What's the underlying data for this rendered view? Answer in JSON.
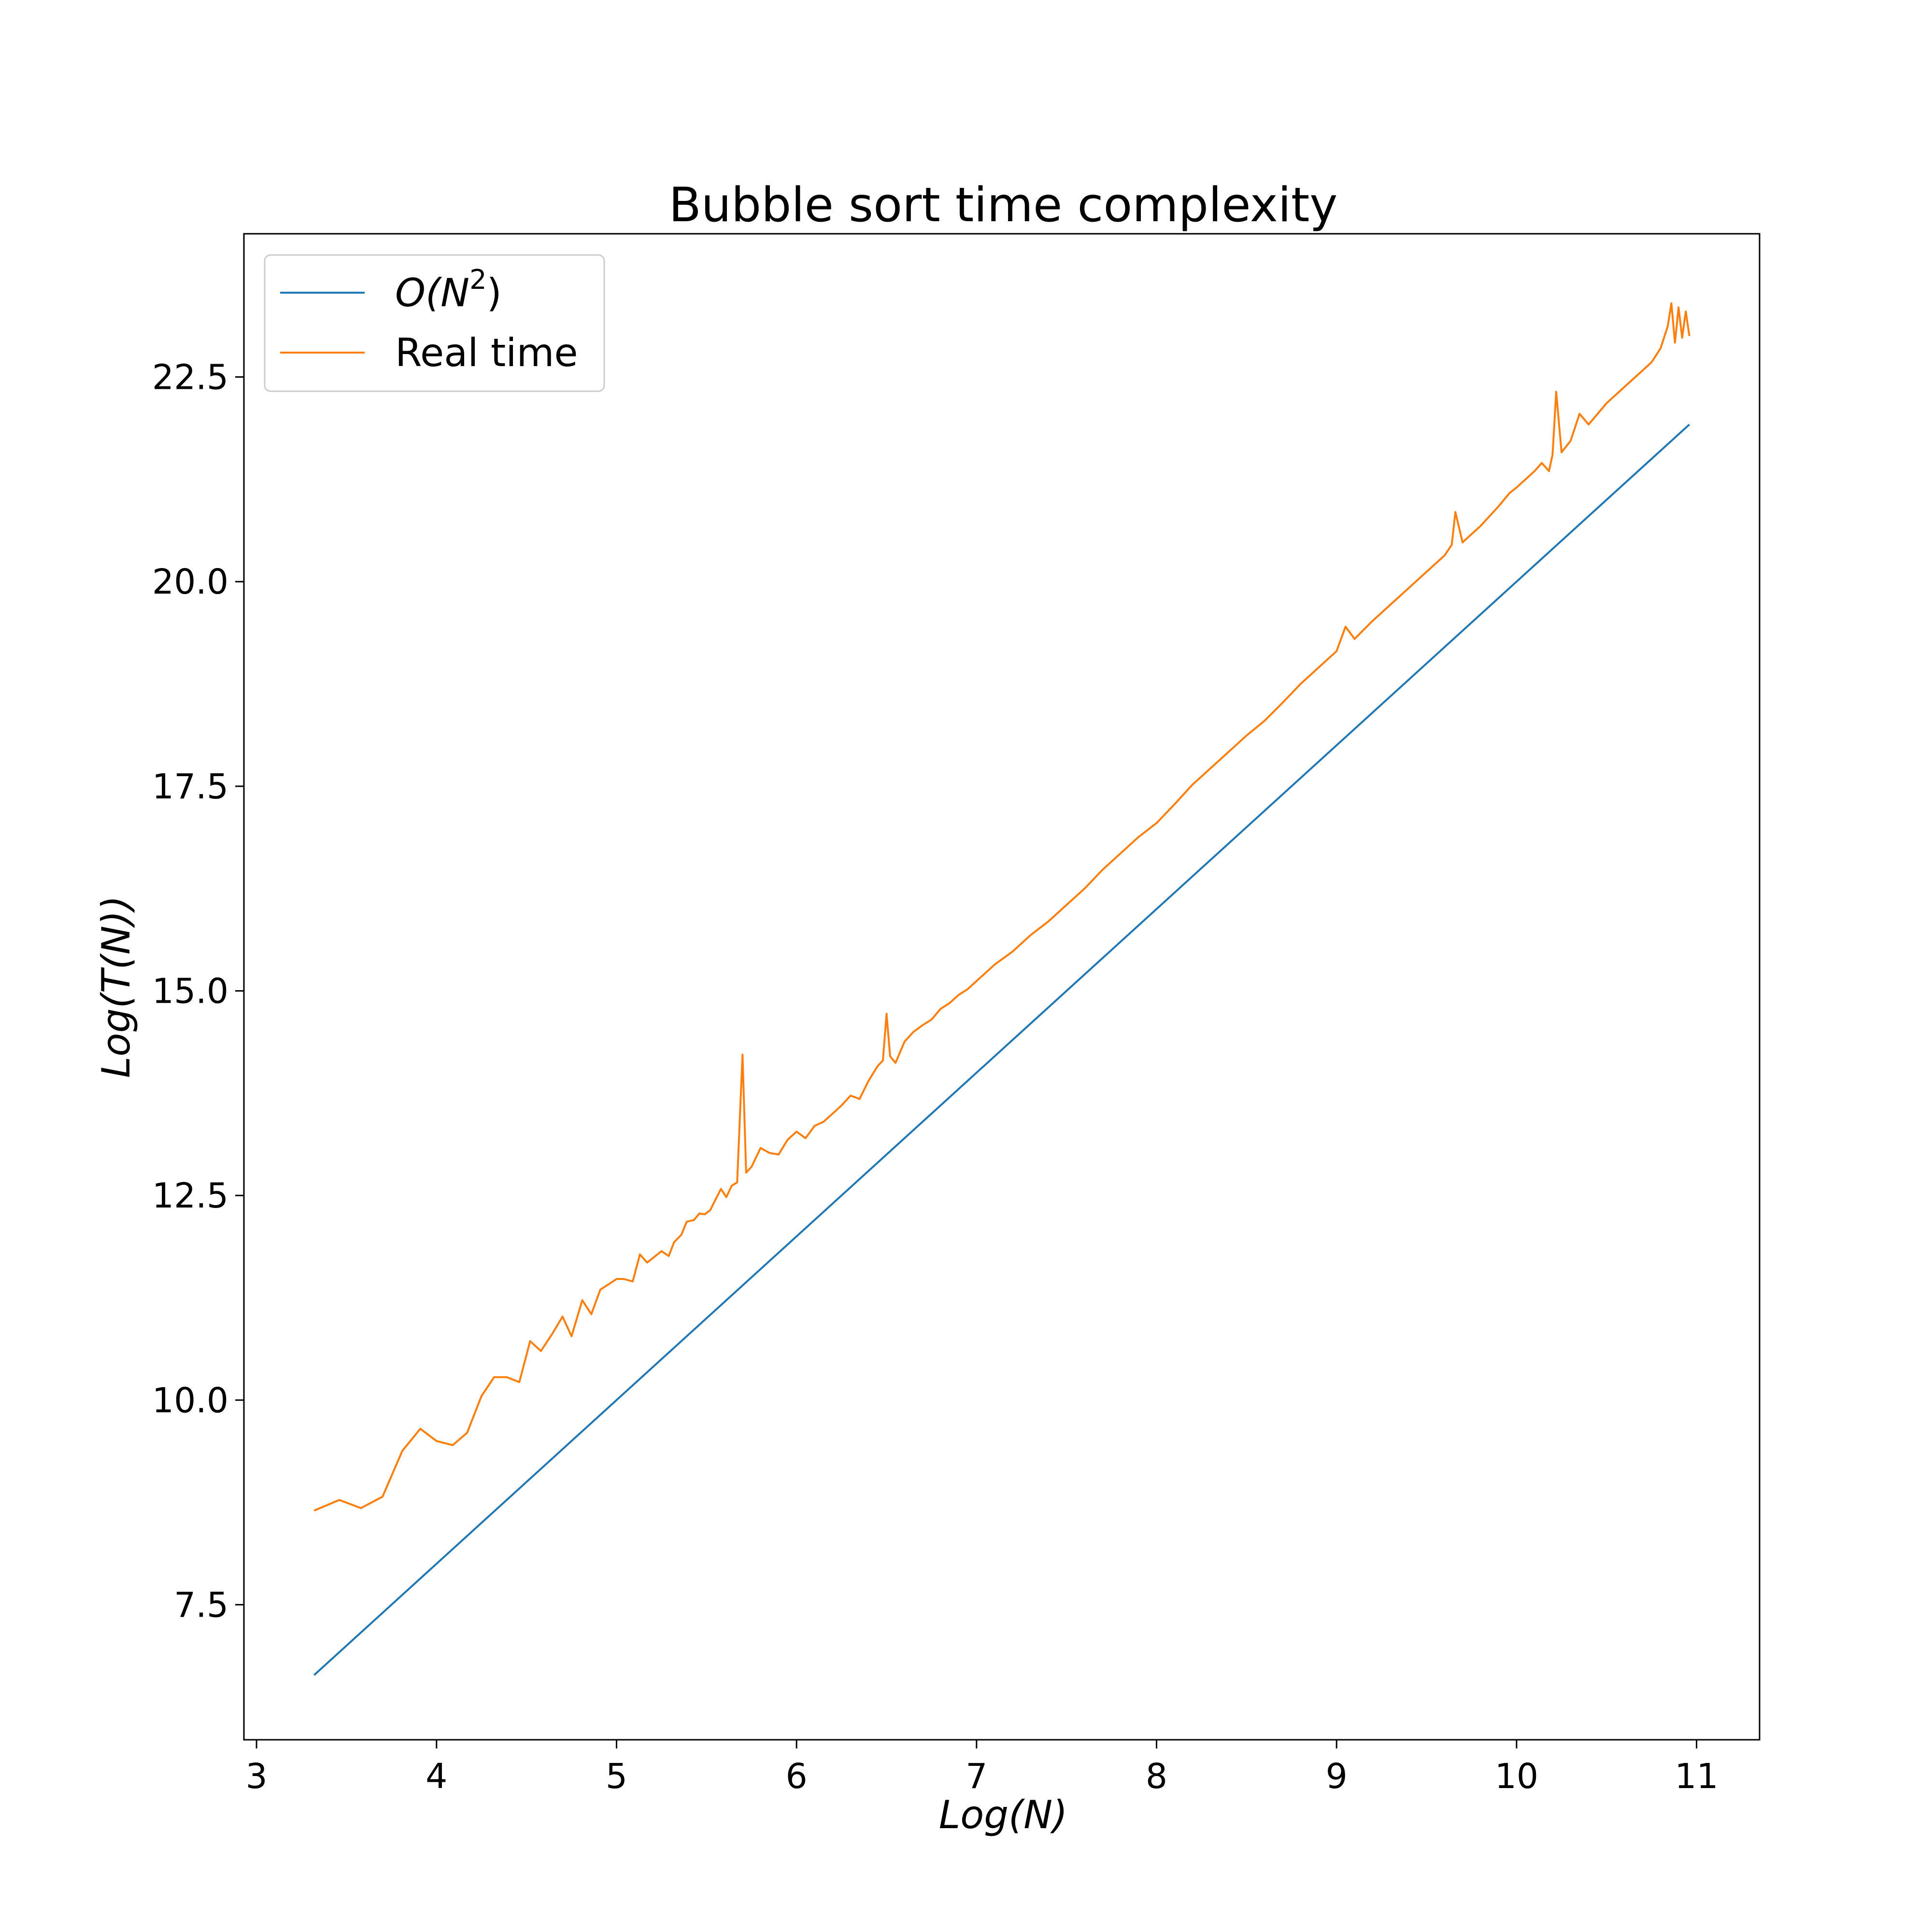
{
  "chart_data": {
    "type": "line",
    "title": "Bubble sort time complexity",
    "xlabel": "Log(N)",
    "ylabel": "Log(T(N))",
    "xlim": [
      2.93,
      11.35
    ],
    "ylim": [
      5.85,
      24.25
    ],
    "x_ticks": [
      3,
      4,
      5,
      6,
      7,
      8,
      9,
      10,
      11
    ],
    "x_tick_labels": [
      "3",
      "4",
      "5",
      "6",
      "7",
      "8",
      "9",
      "10",
      "11"
    ],
    "y_ticks": [
      7.5,
      10.0,
      12.5,
      15.0,
      17.5,
      20.0,
      22.5
    ],
    "y_tick_labels": [
      "7.5",
      "10.0",
      "12.5",
      "15.0",
      "17.5",
      "20.0",
      "22.5"
    ],
    "grid": false,
    "legend_position": "top-left",
    "series": [
      {
        "name": "O(N²)",
        "legend_label": {
          "main": "O(N",
          "sup": "2",
          "close": ")"
        },
        "color": "#1f77b4",
        "x": [
          3.32,
          10.96
        ],
        "y": [
          6.64,
          21.92
        ]
      },
      {
        "name": "Real time",
        "color": "#ff7f0e",
        "x": [
          3.32,
          3.46,
          3.58,
          3.7,
          3.81,
          3.91,
          4.0,
          4.09,
          4.17,
          4.25,
          4.32,
          4.39,
          4.46,
          4.52,
          4.58,
          4.64,
          4.7,
          4.75,
          4.81,
          4.86,
          4.91,
          4.96,
          5.0,
          5.04,
          5.09,
          5.13,
          5.17,
          5.21,
          5.25,
          5.29,
          5.32,
          5.36,
          5.39,
          5.43,
          5.46,
          5.49,
          5.52,
          5.55,
          5.58,
          5.61,
          5.64,
          5.67,
          5.7,
          5.72,
          5.75,
          5.8,
          5.85,
          5.9,
          5.95,
          6.0,
          6.05,
          6.1,
          6.15,
          6.2,
          6.25,
          6.3,
          6.35,
          6.4,
          6.45,
          6.48,
          6.5,
          6.52,
          6.55,
          6.6,
          6.65,
          6.7,
          6.75,
          6.8,
          6.85,
          6.9,
          6.95,
          7.0,
          7.05,
          7.1,
          7.2,
          7.3,
          7.4,
          7.5,
          7.6,
          7.7,
          7.8,
          7.9,
          8.0,
          8.1,
          8.2,
          8.3,
          8.4,
          8.5,
          8.6,
          8.7,
          8.8,
          8.9,
          9.0,
          9.05,
          9.1,
          9.2,
          9.3,
          9.4,
          9.5,
          9.6,
          9.64,
          9.66,
          9.7,
          9.8,
          9.9,
          9.96,
          10.0,
          10.1,
          10.14,
          10.18,
          10.2,
          10.22,
          10.25,
          10.3,
          10.35,
          10.4,
          10.45,
          10.5,
          10.55,
          10.6,
          10.65,
          10.7,
          10.75,
          10.8,
          10.84,
          10.86,
          10.88,
          10.9,
          10.92,
          10.94,
          10.96
        ],
        "y": [
          8.65,
          8.78,
          8.68,
          8.82,
          9.38,
          9.65,
          9.5,
          9.45,
          9.6,
          10.05,
          10.28,
          10.28,
          10.22,
          10.72,
          10.6,
          10.8,
          11.02,
          10.78,
          11.22,
          11.05,
          11.35,
          11.42,
          11.48,
          11.48,
          11.45,
          11.78,
          11.68,
          11.75,
          11.82,
          11.76,
          11.93,
          12.02,
          12.18,
          12.2,
          12.28,
          12.27,
          12.32,
          12.45,
          12.58,
          12.48,
          12.62,
          12.66,
          14.22,
          12.78,
          12.85,
          13.08,
          13.02,
          13.0,
          13.18,
          13.28,
          13.2,
          13.35,
          13.4,
          13.5,
          13.6,
          13.72,
          13.68,
          13.9,
          14.08,
          14.15,
          14.72,
          14.2,
          14.12,
          14.38,
          14.5,
          14.58,
          14.65,
          14.78,
          14.85,
          14.95,
          15.02,
          15.12,
          15.22,
          15.32,
          15.48,
          15.68,
          15.85,
          16.05,
          16.25,
          16.48,
          16.68,
          16.88,
          17.05,
          17.28,
          17.52,
          17.72,
          17.92,
          18.12,
          18.3,
          18.52,
          18.75,
          18.95,
          19.15,
          19.45,
          19.3,
          19.52,
          19.72,
          19.92,
          20.12,
          20.32,
          20.45,
          20.85,
          20.48,
          20.68,
          20.92,
          21.08,
          21.15,
          21.35,
          21.45,
          21.35,
          21.55,
          22.32,
          21.58,
          21.72,
          22.05,
          21.92,
          22.05,
          22.18,
          22.28,
          22.38,
          22.48,
          22.58,
          22.68,
          22.85,
          23.12,
          23.4,
          22.92,
          23.35,
          22.98,
          23.3,
          23.0
        ]
      }
    ]
  }
}
